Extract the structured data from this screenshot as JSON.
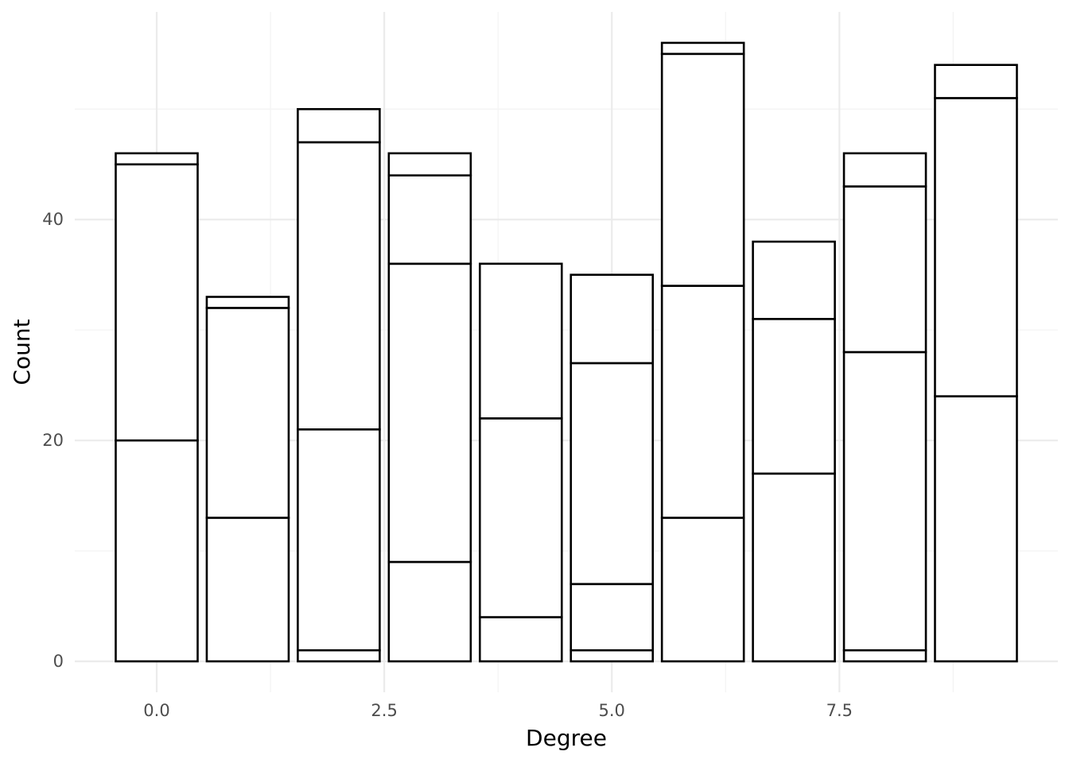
{
  "chart_data": {
    "type": "bar",
    "stacked": true,
    "title": "",
    "xlabel": "Degree",
    "ylabel": "Count",
    "xlim": [
      -0.9,
      9.9
    ],
    "ylim": [
      -2.8,
      58.8
    ],
    "x_ticks": [
      0.0,
      2.5,
      5.0,
      7.5
    ],
    "x_tick_labels": [
      "0.0",
      "2.5",
      "5.0",
      "7.5"
    ],
    "y_ticks": [
      0,
      20,
      40
    ],
    "y_tick_labels": [
      "0",
      "20",
      "40"
    ],
    "x_minor_ticks": [
      1.25,
      3.75,
      6.25,
      8.75
    ],
    "y_minor_ticks": [
      10,
      30,
      50
    ],
    "bar_width": 0.9,
    "grid": true,
    "fill_color": "#ffffff",
    "edge_color": "#000000",
    "x": [
      0,
      1,
      2,
      3,
      4,
      5,
      6,
      7,
      8,
      9
    ],
    "segments": [
      [
        20,
        25,
        1
      ],
      [
        13,
        19,
        1
      ],
      [
        1,
        20,
        26,
        3
      ],
      [
        9,
        27,
        8,
        2
      ],
      [
        4,
        18,
        14
      ],
      [
        1,
        6,
        20,
        8
      ],
      [
        13,
        21,
        21,
        1
      ],
      [
        17,
        14,
        7
      ],
      [
        1,
        27,
        15,
        3
      ],
      [
        24,
        27,
        3
      ]
    ],
    "totals": [
      46,
      33,
      50,
      46,
      36,
      35,
      56,
      38,
      46,
      54
    ]
  }
}
